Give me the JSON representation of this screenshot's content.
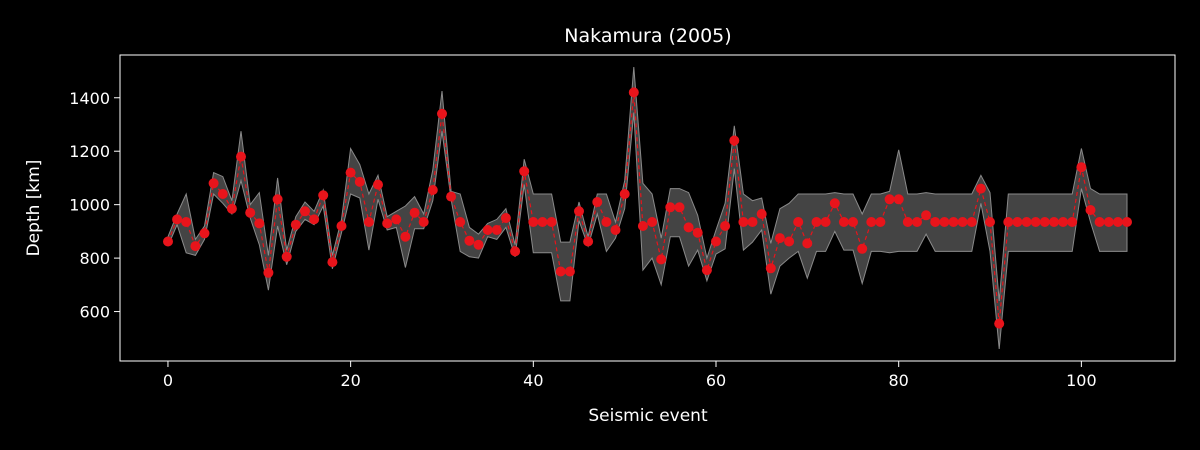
{
  "chart_data": {
    "type": "line",
    "title": "Nakamura (2005)",
    "xlabel": "Seismic event",
    "ylabel": "Depth [km]",
    "xlim": [
      -5.25,
      110.25
    ],
    "ylim": [
      415,
      1560
    ],
    "xticks": [
      0,
      20,
      40,
      60,
      80,
      100
    ],
    "yticks": [
      600,
      800,
      1000,
      1200,
      1400
    ],
    "grid": false,
    "legend": "none",
    "colors": {
      "background": "#000000",
      "axes": "#ffffff",
      "line": "#e8141b",
      "marker": "#e8141b",
      "band": "#444444",
      "band_edge": "#8a8a8a"
    },
    "series": [
      {
        "x": [
          0,
          1,
          2,
          3,
          4,
          5,
          6,
          7,
          8,
          9,
          10,
          11,
          12,
          13,
          14,
          15,
          16,
          17,
          18,
          19,
          20,
          21,
          22,
          23,
          24,
          25,
          26,
          27,
          28,
          29,
          30,
          31,
          32,
          33,
          34,
          35,
          36,
          37,
          38,
          39,
          40,
          41,
          42,
          43,
          44,
          45,
          46,
          47,
          48,
          49,
          50,
          51,
          52,
          53,
          54,
          55,
          56,
          57,
          58,
          59,
          60,
          61,
          62,
          63,
          64,
          65,
          66,
          67,
          68,
          69,
          70,
          71,
          72,
          73,
          74,
          75,
          76,
          77,
          78,
          79,
          80,
          81,
          82,
          83,
          84,
          85,
          86,
          87,
          88,
          89,
          90,
          91,
          92,
          93,
          94,
          95,
          96,
          97,
          98,
          99,
          100,
          101,
          102,
          103,
          104,
          105
        ],
        "y": [
          862,
          945,
          935,
          845,
          893,
          1080,
          1040,
          985,
          1180,
          970,
          930,
          745,
          1020,
          805,
          925,
          975,
          945,
          1035,
          785,
          920,
          1120,
          1085,
          935,
          1075,
          930,
          945,
          880,
          970,
          935,
          1055,
          1340,
          1030,
          935,
          865,
          850,
          905,
          905,
          950,
          825,
          1125,
          935,
          935,
          935,
          750,
          750,
          975,
          862,
          1010,
          935,
          905,
          1040,
          1420,
          920,
          935,
          795,
          990,
          990,
          915,
          895,
          755,
          862,
          920,
          1240,
          935,
          935,
          965,
          762,
          875,
          862,
          935,
          855,
          935,
          935,
          1005,
          935,
          935,
          835,
          935,
          935,
          1020,
          1020,
          935,
          935,
          960,
          935,
          935,
          935,
          935,
          935,
          1060,
          935,
          555,
          935,
          935,
          935,
          935,
          935,
          935,
          935,
          935,
          1140,
          980,
          935,
          935,
          935,
          935
        ],
        "lower": [
          845,
          925,
          820,
          810,
          870,
          1040,
          1005,
          965,
          1090,
          950,
          850,
          680,
          920,
          775,
          900,
          945,
          925,
          995,
          760,
          895,
          1040,
          1025,
          830,
          1020,
          905,
          915,
          765,
          910,
          910,
          1015,
          1275,
          1020,
          825,
          805,
          800,
          880,
          870,
          915,
          805,
          1075,
          820,
          820,
          820,
          640,
          640,
          940,
          845,
          965,
          825,
          875,
          985,
          1345,
          755,
          800,
          700,
          880,
          880,
          770,
          830,
          715,
          815,
          835,
          1135,
          830,
          860,
          905,
          665,
          770,
          800,
          825,
          725,
          825,
          825,
          900,
          830,
          830,
          705,
          825,
          825,
          820,
          825,
          825,
          825,
          890,
          825,
          825,
          825,
          825,
          825,
          1005,
          825,
          460,
          825,
          825,
          825,
          825,
          825,
          825,
          825,
          825,
          1060,
          935,
          825,
          825,
          825,
          825
        ],
        "upper": [
          880,
          965,
          1040,
          870,
          920,
          1120,
          1105,
          1015,
          1275,
          1000,
          1045,
          810,
          1100,
          830,
          955,
          1010,
          975,
          1055,
          810,
          945,
          1210,
          1150,
          1040,
          1110,
          955,
          975,
          995,
          1030,
          965,
          1130,
          1425,
          1050,
          1040,
          915,
          890,
          930,
          945,
          985,
          850,
          1170,
          1040,
          1040,
          1040,
          860,
          860,
          1010,
          880,
          1040,
          1040,
          935,
          1090,
          1515,
          1080,
          1040,
          875,
          1060,
          1060,
          1045,
          960,
          800,
          905,
          1005,
          1295,
          1040,
          1015,
          1025,
          855,
          985,
          1005,
          1040,
          1040,
          1040,
          1040,
          1045,
          1040,
          1040,
          965,
          1040,
          1040,
          1050,
          1205,
          1040,
          1040,
          1045,
          1040,
          1040,
          1040,
          1040,
          1040,
          1110,
          1045,
          640,
          1040,
          1040,
          1040,
          1040,
          1040,
          1040,
          1040,
          1040,
          1210,
          1060,
          1040,
          1040,
          1040,
          1040
        ]
      }
    ]
  }
}
